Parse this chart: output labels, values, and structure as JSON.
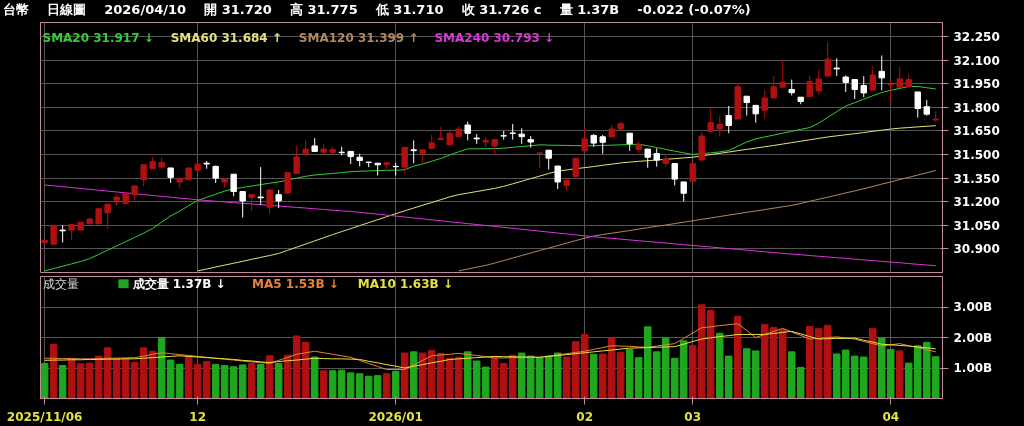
{
  "chart_data": [
    {
      "type": "candlestick",
      "title": "台幣",
      "annotations": [
        "日線圖",
        "2026/04/10",
        "開 31.720",
        "高 31.775",
        "低 31.710",
        "收 31.726 c",
        "量 1.37B",
        "-0.022 (-0.07%)"
      ],
      "categories": [
        "2025/11/06",
        null,
        null,
        null,
        null,
        null,
        null,
        null,
        null,
        null,
        null,
        null,
        null,
        null,
        null,
        null,
        null,
        "12",
        null,
        null,
        null,
        null,
        null,
        null,
        null,
        null,
        null,
        null,
        null,
        null,
        null,
        null,
        null,
        null,
        null,
        null,
        null,
        null,
        null,
        "2026/01",
        null,
        null,
        null,
        null,
        null,
        null,
        null,
        null,
        null,
        null,
        null,
        null,
        null,
        null,
        null,
        null,
        null,
        null,
        null,
        null,
        "02",
        null,
        null,
        null,
        null,
        null,
        null,
        null,
        null,
        null,
        null,
        null,
        "03",
        null,
        null,
        null,
        null,
        null,
        null,
        null,
        null,
        null,
        null,
        null,
        null,
        null,
        null,
        null,
        null,
        null,
        null,
        null,
        null,
        null,
        "04",
        null,
        null,
        null,
        null,
        null
      ],
      "ohlc": [
        [
          30.94,
          30.96,
          30.935,
          30.955
        ],
        [
          30.93,
          31.05,
          30.93,
          31.05
        ],
        [
          31.02,
          31.05,
          30.94,
          31.015
        ],
        [
          31.02,
          31.055,
          30.955,
          31.055
        ],
        [
          31.02,
          31.07,
          31.02,
          31.07
        ],
        [
          31.06,
          31.1,
          31.06,
          31.09
        ],
        [
          31.06,
          31.16,
          31.06,
          31.155
        ],
        [
          31.13,
          31.19,
          31.025,
          31.185
        ],
        [
          31.21,
          31.245,
          31.175,
          31.23
        ],
        [
          31.19,
          31.26,
          31.19,
          31.255
        ],
        [
          31.245,
          31.3,
          31.21,
          31.3
        ],
        [
          31.34,
          31.44,
          31.3,
          31.435
        ],
        [
          31.41,
          31.485,
          31.41,
          31.455
        ],
        [
          31.42,
          31.48,
          31.42,
          31.45
        ],
        [
          31.415,
          31.415,
          31.32,
          31.355
        ],
        [
          31.325,
          31.35,
          31.29,
          31.35
        ],
        [
          31.34,
          31.415,
          31.34,
          31.415
        ],
        [
          31.4,
          31.46,
          31.4,
          31.44
        ],
        [
          31.445,
          31.46,
          31.41,
          31.44
        ],
        [
          31.425,
          31.43,
          31.32,
          31.35
        ],
        [
          31.325,
          31.345,
          31.29,
          31.345
        ],
        [
          31.375,
          31.375,
          31.235,
          31.265
        ],
        [
          31.265,
          31.265,
          31.1,
          31.205
        ],
        [
          31.228,
          31.25,
          31.14,
          31.245
        ],
        [
          31.23,
          31.42,
          31.18,
          31.225
        ],
        [
          31.165,
          31.275,
          31.125,
          31.275
        ],
        [
          31.245,
          31.275,
          31.16,
          31.205
        ],
        [
          31.255,
          31.385,
          31.255,
          31.385
        ],
        [
          31.38,
          31.555,
          31.38,
          31.485
        ],
        [
          31.505,
          31.595,
          31.49,
          31.535
        ],
        [
          31.555,
          31.605,
          31.52,
          31.52
        ],
        [
          31.515,
          31.565,
          31.515,
          31.535
        ],
        [
          31.513,
          31.55,
          31.51,
          31.532
        ],
        [
          31.515,
          31.55,
          31.495,
          31.512
        ],
        [
          31.52,
          31.52,
          31.44,
          31.487
        ],
        [
          31.483,
          31.505,
          31.425,
          31.462
        ],
        [
          31.452,
          31.452,
          31.42,
          31.45
        ],
        [
          31.445,
          31.445,
          31.367,
          31.435
        ],
        [
          31.436,
          31.452,
          31.41,
          31.448
        ],
        [
          31.425,
          31.445,
          31.367,
          31.423
        ],
        [
          31.42,
          31.55,
          31.38,
          31.545
        ],
        [
          31.53,
          31.59,
          31.445,
          31.525
        ],
        [
          31.505,
          31.53,
          31.445,
          31.53
        ],
        [
          31.54,
          31.625,
          31.54,
          31.575
        ],
        [
          31.595,
          31.675,
          31.595,
          31.603
        ],
        [
          31.563,
          31.66,
          31.56,
          31.635
        ],
        [
          31.615,
          31.68,
          31.615,
          31.662
        ],
        [
          31.688,
          31.71,
          31.59,
          31.635
        ],
        [
          31.605,
          31.63,
          31.568,
          31.6
        ],
        [
          31.58,
          31.61,
          31.548,
          31.59
        ],
        [
          31.555,
          31.595,
          31.495,
          31.595
        ],
        [
          31.62,
          31.65,
          31.595,
          31.618
        ],
        [
          31.637,
          31.695,
          31.595,
          31.635
        ],
        [
          31.63,
          31.667,
          31.568,
          31.614
        ],
        [
          31.595,
          31.618,
          31.545,
          31.58
        ],
        [
          31.509,
          31.51,
          31.416,
          31.51
        ],
        [
          31.528,
          31.528,
          31.405,
          31.477
        ],
        [
          31.427,
          31.427,
          31.281,
          31.326
        ],
        [
          31.304,
          31.35,
          31.27,
          31.337
        ],
        [
          31.36,
          31.477,
          31.36,
          31.477
        ],
        [
          31.524,
          31.674,
          31.524,
          31.6
        ],
        [
          31.622,
          31.63,
          31.55,
          31.573
        ],
        [
          31.613,
          31.625,
          31.506,
          31.578
        ],
        [
          31.613,
          31.69,
          31.613,
          31.663
        ],
        [
          31.663,
          31.71,
          31.655,
          31.697
        ],
        [
          31.636,
          31.636,
          31.524,
          31.569
        ],
        [
          31.533,
          31.584,
          31.51,
          31.562
        ],
        [
          31.535,
          31.535,
          31.416,
          31.483
        ],
        [
          31.506,
          31.54,
          31.423,
          31.465
        ],
        [
          31.443,
          31.506,
          31.423,
          31.472
        ],
        [
          31.443,
          31.443,
          31.304,
          31.344
        ],
        [
          31.326,
          31.326,
          31.203,
          31.254
        ],
        [
          31.331,
          31.461,
          31.331,
          31.443
        ],
        [
          31.465,
          31.645,
          31.465,
          31.618
        ],
        [
          31.645,
          31.793,
          31.645,
          31.703
        ],
        [
          31.663,
          31.748,
          31.618,
          31.692
        ],
        [
          31.748,
          31.809,
          31.636,
          31.685
        ],
        [
          31.726,
          31.955,
          31.726,
          31.932
        ],
        [
          31.871,
          31.871,
          31.748,
          31.831
        ],
        [
          31.813,
          31.813,
          31.703,
          31.759
        ],
        [
          31.782,
          31.91,
          31.726,
          31.86
        ],
        [
          31.86,
          32.0,
          31.86,
          31.932
        ],
        [
          31.928,
          32.1,
          31.928,
          31.961
        ],
        [
          31.914,
          31.977,
          31.876,
          31.894
        ],
        [
          31.865,
          31.865,
          31.82,
          31.838
        ],
        [
          31.869,
          32.004,
          31.869,
          31.966
        ],
        [
          31.905,
          32.04,
          31.883,
          31.981
        ],
        [
          31.999,
          32.213,
          31.999,
          32.107
        ],
        [
          32.05,
          32.112,
          32.0,
          32.045
        ],
        [
          31.993,
          32.004,
          31.898,
          31.959
        ],
        [
          31.977,
          31.977,
          31.854,
          31.914
        ],
        [
          31.939,
          31.999,
          31.865,
          31.892
        ],
        [
          31.91,
          32.062,
          31.91,
          32.006
        ],
        [
          32.029,
          32.13,
          31.91,
          31.988
        ],
        [
          31.943,
          31.966,
          31.82,
          31.946
        ],
        [
          31.928,
          32.055,
          31.928,
          31.981
        ],
        [
          31.932,
          32.01,
          31.932,
          31.977
        ],
        [
          31.898,
          31.898,
          31.735,
          31.793
        ],
        [
          31.804,
          31.847,
          31.748,
          31.757
        ],
        [
          31.72,
          31.775,
          31.71,
          31.726
        ]
      ],
      "colors": [
        "#b01010",
        "#b01010",
        "#ffffff",
        "#b01010",
        "#b01010",
        "#b01010",
        "#b01010",
        "#b01010",
        "#b01010",
        "#b01010",
        "#b01010",
        "#b01010",
        "#b01010",
        "#b01010",
        "#ffffff",
        "#b01010",
        "#b01010",
        "#b01010",
        "#ffffff",
        "#ffffff",
        "#b01010",
        "#ffffff",
        "#ffffff",
        "#b01010",
        "#ffffff",
        "#b01010",
        "#ffffff",
        "#b01010",
        "#b01010",
        "#b01010",
        "#ffffff",
        "#b01010",
        "#b01010",
        "#ffffff",
        "#ffffff",
        "#ffffff",
        "#ffffff",
        "#ffffff",
        "#b01010",
        "#ffffff",
        "#b01010",
        "#ffffff",
        "#b01010",
        "#b01010",
        "#b01010",
        "#b01010",
        "#b01010",
        "#ffffff",
        "#ffffff",
        "#b01010",
        "#b01010",
        "#ffffff",
        "#ffffff",
        "#ffffff",
        "#ffffff",
        "#b01010",
        "#ffffff",
        "#ffffff",
        "#b01010",
        "#b01010",
        "#b01010",
        "#ffffff",
        "#ffffff",
        "#b01010",
        "#b01010",
        "#ffffff",
        "#b01010",
        "#ffffff",
        "#ffffff",
        "#b01010",
        "#ffffff",
        "#ffffff",
        "#b01010",
        "#b01010",
        "#b01010",
        "#b01010",
        "#ffffff",
        "#b01010",
        "#ffffff",
        "#ffffff",
        "#b01010",
        "#b01010",
        "#b01010",
        "#ffffff",
        "#ffffff",
        "#b01010",
        "#b01010",
        "#b01010",
        "#ffffff",
        "#ffffff",
        "#ffffff",
        "#ffffff",
        "#b01010",
        "#ffffff",
        "#b01010",
        "#b01010",
        "#b01010",
        "#ffffff",
        "#ffffff",
        "#b01010"
      ],
      "series": [
        {
          "name": "SMA20 31.917 ↓",
          "type": "line",
          "color": "#33cc33",
          "values": [
            30.76,
            30.775,
            30.79,
            30.805,
            30.82,
            30.838,
            30.865,
            30.892,
            30.919,
            30.946,
            30.973,
            31.0,
            31.03,
            31.07,
            31.11,
            31.14,
            31.175,
            31.208,
            31.228,
            31.248,
            31.268,
            31.282,
            31.291,
            31.3,
            31.309,
            31.318,
            31.326,
            31.338,
            31.35,
            31.362,
            31.37,
            31.375,
            31.38,
            31.386,
            31.391,
            31.394,
            31.396,
            31.398,
            31.4,
            31.401,
            31.403,
            31.427,
            31.44,
            31.458,
            31.475,
            31.497,
            31.518,
            31.536,
            31.537,
            31.537,
            31.538,
            31.541,
            31.546,
            31.551,
            31.556,
            31.562,
            31.56,
            31.559,
            31.558,
            31.557,
            31.556,
            31.556,
            31.558,
            31.56,
            31.562,
            31.564,
            31.566,
            31.556,
            31.545,
            31.533,
            31.522,
            31.511,
            31.501,
            31.506,
            31.511,
            31.517,
            31.526,
            31.553,
            31.58,
            31.6,
            31.612,
            31.624,
            31.636,
            31.648,
            31.66,
            31.672,
            31.7,
            31.736,
            31.773,
            31.809,
            31.83,
            31.852,
            31.874,
            31.895,
            31.909,
            31.921,
            31.933,
            31.933,
            31.925,
            31.917
          ]
        },
        {
          "name": "SMA60 31.684 ↑",
          "type": "line",
          "color": "#e6e07a",
          "values": [
            null,
            null,
            null,
            null,
            null,
            null,
            null,
            null,
            null,
            null,
            null,
            null,
            null,
            null,
            null,
            null,
            null,
            30.76,
            30.772,
            30.785,
            30.797,
            30.809,
            30.821,
            30.834,
            30.846,
            30.858,
            30.871,
            30.891,
            30.911,
            30.931,
            30.951,
            30.971,
            30.991,
            31.01,
            31.029,
            31.048,
            31.067,
            31.086,
            31.105,
            31.124,
            31.142,
            31.16,
            31.178,
            31.195,
            31.213,
            31.231,
            31.245,
            31.255,
            31.265,
            31.275,
            31.285,
            31.298,
            31.314,
            31.33,
            31.347,
            31.363,
            31.38,
            31.395,
            31.402,
            31.41,
            31.417,
            31.424,
            31.432,
            31.439,
            31.447,
            31.452,
            31.457,
            31.461,
            31.465,
            31.47,
            31.474,
            31.479,
            31.483,
            31.491,
            31.5,
            31.508,
            31.516,
            31.525,
            31.533,
            31.541,
            31.55,
            31.558,
            31.567,
            31.576,
            31.585,
            31.594,
            31.603,
            31.612,
            31.619,
            31.626,
            31.633,
            31.64,
            31.648,
            31.655,
            31.662,
            31.668,
            31.672,
            31.676,
            31.68,
            31.684
          ]
        },
        {
          "name": "SMA120 31.399 ↑",
          "type": "line",
          "color": "#b08860",
          "values": [
            null,
            null,
            null,
            null,
            null,
            null,
            null,
            null,
            null,
            null,
            null,
            null,
            null,
            null,
            null,
            null,
            null,
            null,
            null,
            null,
            null,
            null,
            null,
            null,
            null,
            null,
            null,
            null,
            null,
            null,
            null,
            null,
            null,
            null,
            null,
            null,
            null,
            null,
            null,
            null,
            null,
            null,
            null,
            null,
            null,
            null,
            30.76,
            30.772,
            30.784,
            30.795,
            30.81,
            30.826,
            30.842,
            30.858,
            30.874,
            30.89,
            30.905,
            30.921,
            30.937,
            30.953,
            30.968,
            30.982,
            30.991,
            31.0,
            31.008,
            31.017,
            31.026,
            31.035,
            31.044,
            31.052,
            31.061,
            31.07,
            31.079,
            31.088,
            31.097,
            31.106,
            31.115,
            31.124,
            31.133,
            31.141,
            31.15,
            31.159,
            31.168,
            31.177,
            31.189,
            31.203,
            31.216,
            31.229,
            31.242,
            31.256,
            31.269,
            31.283,
            31.297,
            31.312,
            31.326,
            31.341,
            31.355,
            31.37,
            31.384,
            31.399
          ]
        },
        {
          "name": "SMA240 30.793 ↓",
          "type": "line",
          "color": "#dd33dd",
          "values": [
            31.307,
            31.301,
            31.296,
            31.29,
            31.285,
            31.279,
            31.273,
            31.268,
            31.262,
            31.257,
            31.251,
            31.245,
            31.24,
            31.234,
            31.229,
            31.223,
            31.218,
            31.212,
            31.208,
            31.203,
            31.199,
            31.194,
            31.19,
            31.186,
            31.181,
            31.177,
            31.173,
            31.168,
            31.164,
            31.16,
            31.155,
            31.151,
            31.146,
            31.142,
            31.138,
            31.133,
            31.127,
            31.121,
            31.115,
            31.109,
            31.103,
            31.097,
            31.091,
            31.085,
            31.079,
            31.073,
            31.067,
            31.061,
            31.055,
            31.049,
            31.043,
            31.037,
            31.031,
            31.025,
            31.019,
            31.013,
            31.007,
            31.001,
            30.995,
            30.989,
            30.983,
            30.977,
            30.972,
            30.967,
            30.962,
            30.957,
            30.952,
            30.947,
            30.942,
            30.937,
            30.932,
            30.927,
            30.922,
            30.917,
            30.912,
            30.907,
            30.902,
            30.897,
            30.892,
            30.887,
            30.882,
            30.877,
            30.872,
            30.867,
            30.863,
            30.858,
            30.853,
            30.849,
            30.844,
            30.84,
            30.835,
            30.83,
            30.826,
            30.821,
            30.816,
            30.812,
            30.807,
            30.802,
            30.798,
            30.793
          ]
        }
      ],
      "ylim": [
        30.75,
        32.34
      ],
      "yticks": [
        {
          "value": 30.9,
          "label": "30.900"
        },
        {
          "value": 31.05,
          "label": "31.050"
        },
        {
          "value": 31.2,
          "label": "31.200"
        },
        {
          "value": 31.35,
          "label": "31.350"
        },
        {
          "value": 31.5,
          "label": "31.500"
        },
        {
          "value": 31.65,
          "label": "31.650"
        },
        {
          "value": 31.8,
          "label": "31.800"
        },
        {
          "value": 31.95,
          "label": "31.950"
        },
        {
          "value": 32.1,
          "label": "32.100"
        },
        {
          "value": 32.25,
          "label": "32.250"
        }
      ],
      "grid": true,
      "legend": "top left",
      "tick_labels": "y"
    },
    {
      "type": "bar",
      "title": "成交量",
      "categories": [
        "2025/11/06",
        null,
        null,
        null,
        null,
        null,
        null,
        null,
        null,
        null,
        null,
        null,
        null,
        null,
        null,
        null,
        null,
        "12",
        null,
        null,
        null,
        null,
        null,
        null,
        null,
        null,
        null,
        null,
        null,
        null,
        null,
        null,
        null,
        null,
        null,
        null,
        null,
        null,
        null,
        "2026/01",
        null,
        null,
        null,
        null,
        null,
        null,
        null,
        null,
        null,
        null,
        null,
        null,
        null,
        null,
        null,
        null,
        null,
        null,
        null,
        null,
        "02",
        null,
        null,
        null,
        null,
        null,
        null,
        null,
        null,
        null,
        null,
        null,
        "03",
        null,
        null,
        null,
        null,
        null,
        null,
        null,
        null,
        null,
        null,
        null,
        null,
        null,
        null,
        null,
        null,
        null,
        null,
        null,
        null,
        null,
        "04",
        null,
        null,
        null,
        null,
        null
      ],
      "series": [
        {
          "name": "成交量 1.37B ↓",
          "type": "bar",
          "values": [
            1.15,
            1.78,
            1.08,
            1.29,
            1.14,
            1.16,
            1.39,
            1.66,
            1.32,
            1.32,
            1.18,
            1.66,
            1.55,
            2.0,
            1.26,
            1.12,
            1.39,
            1.12,
            1.21,
            1.12,
            1.08,
            1.04,
            1.1,
            1.14,
            1.12,
            1.4,
            1.15,
            1.42,
            2.05,
            1.84,
            1.36,
            0.91,
            0.91,
            0.93,
            0.84,
            0.81,
            0.73,
            0.75,
            0.81,
            0.89,
            1.49,
            1.53,
            1.49,
            1.58,
            1.48,
            1.31,
            1.36,
            1.53,
            1.23,
            1.03,
            1.32,
            1.15,
            1.42,
            1.49,
            1.39,
            1.33,
            1.39,
            1.49,
            1.36,
            1.86,
            2.1,
            1.45,
            1.46,
            1.98,
            1.52,
            1.6,
            1.34,
            2.35,
            1.53,
            1.98,
            1.32,
            1.89,
            1.74,
            3.07,
            2.89,
            2.14,
            1.39,
            2.7,
            1.63,
            1.56,
            2.43,
            2.33,
            2.26,
            1.53,
            1.02,
            2.36,
            2.29,
            2.4,
            1.46,
            1.59,
            1.39,
            1.36,
            2.29,
            1.98,
            1.61,
            1.56,
            1.16,
            1.73,
            1.84,
            1.37
          ],
          "colors": [
            "#1fa81f",
            "#b01010",
            "#1fa81f",
            "#b01010",
            "#b01010",
            "#b01010",
            "#b01010",
            "#b01010",
            "#b01010",
            "#b01010",
            "#b01010",
            "#b01010",
            "#b01010",
            "#1fa81f",
            "#1fa81f",
            "#1fa81f",
            "#b01010",
            "#b01010",
            "#b01010",
            "#1fa81f",
            "#1fa81f",
            "#1fa81f",
            "#1fa81f",
            "#b01010",
            "#1fa81f",
            "#b01010",
            "#1fa81f",
            "#b01010",
            "#b01010",
            "#b01010",
            "#1fa81f",
            "#b01010",
            "#1fa81f",
            "#1fa81f",
            "#1fa81f",
            "#1fa81f",
            "#1fa81f",
            "#1fa81f",
            "#b01010",
            "#1fa81f",
            "#b01010",
            "#1fa81f",
            "#b01010",
            "#b01010",
            "#b01010",
            "#b01010",
            "#b01010",
            "#1fa81f",
            "#1fa81f",
            "#1fa81f",
            "#b01010",
            "#b01010",
            "#b01010",
            "#1fa81f",
            "#1fa81f",
            "#1fa81f",
            "#1fa81f",
            "#1fa81f",
            "#b01010",
            "#b01010",
            "#b01010",
            "#1fa81f",
            "#b01010",
            "#b01010",
            "#b01010",
            "#1fa81f",
            "#1fa81f",
            "#1fa81f",
            "#1fa81f",
            "#1fa81f",
            "#1fa81f",
            "#1fa81f",
            "#b01010",
            "#b01010",
            "#b01010",
            "#1fa81f",
            "#1fa81f",
            "#b01010",
            "#1fa81f",
            "#1fa81f",
            "#b01010",
            "#b01010",
            "#b01010",
            "#1fa81f",
            "#1fa81f",
            "#b01010",
            "#b01010",
            "#b01010",
            "#1fa81f",
            "#1fa81f",
            "#1fa81f",
            "#1fa81f",
            "#b01010",
            "#1fa81f",
            "#1fa81f",
            "#b01010",
            "#1fa81f",
            "#1fa81f",
            "#1fa81f",
            "#1fa81f"
          ]
        },
        {
          "name": "MA5 1.53B ↓",
          "type": "line",
          "color": "#e8823a",
          "values": [
            1.32,
            1.32,
            1.31,
            1.31,
            1.3,
            1.3,
            1.31,
            1.32,
            1.32,
            1.33,
            1.34,
            1.39,
            1.45,
            1.5,
            1.47,
            1.44,
            1.41,
            1.38,
            1.35,
            1.32,
            1.29,
            1.26,
            1.23,
            1.2,
            1.18,
            1.15,
            1.25,
            1.35,
            1.45,
            1.5,
            1.55,
            1.5,
            1.45,
            1.4,
            1.35,
            1.25,
            1.15,
            1.05,
            0.95,
            0.95,
            0.95,
            1.1,
            1.25,
            1.4,
            1.43,
            1.45,
            1.48,
            1.44,
            1.41,
            1.37,
            1.33,
            1.33,
            1.34,
            1.34,
            1.35,
            1.35,
            1.39,
            1.43,
            1.47,
            1.51,
            1.55,
            1.61,
            1.67,
            1.73,
            1.72,
            1.71,
            1.69,
            1.68,
            1.72,
            1.76,
            1.8,
            1.97,
            2.15,
            2.32,
            2.35,
            2.39,
            2.42,
            2.45,
            2.23,
            2.0,
            2.1,
            2.2,
            2.3,
            2.18,
            2.07,
            1.95,
            1.97,
            2.0,
            2.02,
            1.99,
            1.95,
            1.87,
            1.8,
            1.72,
            1.76,
            1.8,
            1.73,
            1.67,
            1.6,
            1.53
          ]
        },
        {
          "name": "MA10 1.63B ↓",
          "type": "line",
          "color": "#e6e040",
          "values": [
            1.25,
            1.26,
            1.26,
            1.27,
            1.27,
            1.28,
            1.28,
            1.29,
            1.29,
            1.3,
            1.3,
            1.32,
            1.34,
            1.36,
            1.38,
            1.4,
            1.38,
            1.36,
            1.34,
            1.32,
            1.3,
            1.28,
            1.25,
            1.23,
            1.2,
            1.18,
            1.21,
            1.24,
            1.26,
            1.29,
            1.32,
            1.31,
            1.3,
            1.3,
            1.29,
            1.28,
            1.22,
            1.17,
            1.11,
            1.06,
            1.0,
            1.06,
            1.11,
            1.17,
            1.22,
            1.28,
            1.3,
            1.32,
            1.34,
            1.36,
            1.38,
            1.37,
            1.37,
            1.36,
            1.36,
            1.35,
            1.38,
            1.41,
            1.44,
            1.47,
            1.5,
            1.53,
            1.56,
            1.59,
            1.62,
            1.65,
            1.66,
            1.67,
            1.68,
            1.69,
            1.7,
            1.78,
            1.87,
            1.95,
            1.99,
            2.03,
            2.06,
            2.1,
            2.1,
            2.1,
            2.1,
            2.13,
            2.17,
            2.2,
            2.12,
            2.03,
            1.95,
            1.96,
            1.97,
            1.97,
            1.98,
            1.91,
            1.85,
            1.78,
            1.76,
            1.74,
            1.72,
            1.69,
            1.66,
            1.63
          ]
        }
      ],
      "ylim": [
        0,
        4.0
      ],
      "yticks": [
        {
          "value": 1,
          "label": "1.00B"
        },
        {
          "value": 2,
          "label": "2.00B"
        },
        {
          "value": 3,
          "label": "3.00B"
        }
      ],
      "grid": true,
      "legend": "top left"
    }
  ]
}
